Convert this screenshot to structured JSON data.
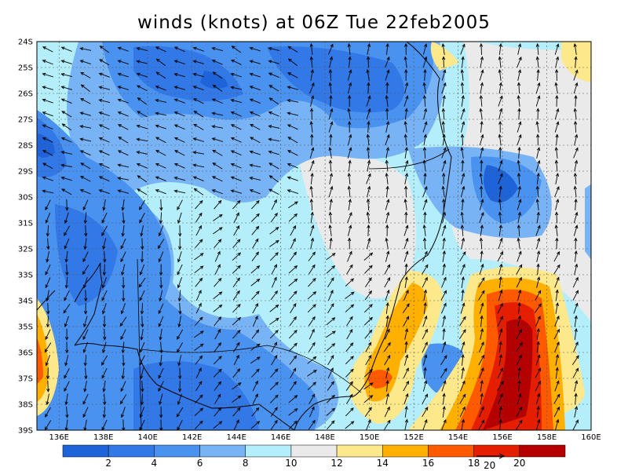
{
  "title": "winds (knots) at 06Z Tue 22feb2005",
  "map": {
    "lon_range": [
      135,
      160
    ],
    "lat_range": [
      -39,
      -24
    ],
    "lon_labels": [
      "136E",
      "138E",
      "140E",
      "142E",
      "144E",
      "146E",
      "148E",
      "150E",
      "152E",
      "154E",
      "156E",
      "158E",
      "160E"
    ],
    "lat_labels": [
      "24S",
      "25S",
      "26S",
      "27S",
      "28S",
      "29S",
      "30S",
      "31S",
      "32S",
      "33S",
      "34S",
      "35S",
      "36S",
      "37S",
      "38S",
      "39S"
    ],
    "grid": "dotted",
    "field": "wind speed (knots)",
    "colorbar": {
      "labels": [
        "2",
        "4",
        "6",
        "8",
        "10",
        "12",
        "14",
        "16",
        "18",
        "20"
      ],
      "colors": [
        "#1e64d8",
        "#3278e6",
        "#4a92ef",
        "#78b4f5",
        "#b4eefa",
        "#eaeaea",
        "#fde88c",
        "#ffb000",
        "#ff5a00",
        "#e61e00",
        "#b40000"
      ]
    },
    "vector_key_label": "20",
    "regions": [
      {
        "name": "blue-low-west",
        "center": [
          137.5,
          -28
        ],
        "level": "2-4"
      },
      {
        "name": "blue-low-north",
        "center": [
          143,
          -25
        ],
        "level": "2-4"
      },
      {
        "name": "blue-low-south",
        "center": [
          143,
          -37
        ],
        "level": "2-4"
      },
      {
        "name": "orange-max-coast",
        "center": [
          150.5,
          -36.6
        ],
        "level": "16-20"
      },
      {
        "name": "red-max-tasman",
        "center": [
          156.5,
          -36.5
        ],
        "level": ">20"
      },
      {
        "name": "orange-west-edge",
        "center": [
          135.3,
          -36.5
        ],
        "level": "14-18"
      }
    ]
  }
}
